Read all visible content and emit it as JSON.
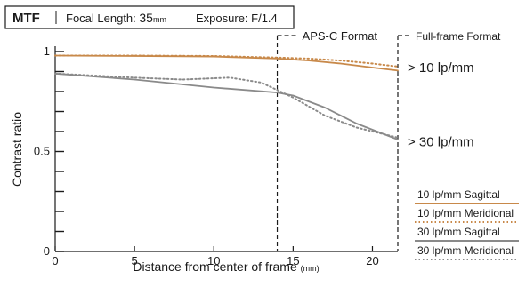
{
  "header": {
    "mtf": "MTF",
    "focal_prefix": "Focal Length: ",
    "focal_value": "35",
    "focal_unit": "mm",
    "exposure": "Exposure: F/1.4"
  },
  "chart_data": {
    "type": "line",
    "xlabel": "Distance from center of frame",
    "xlabel_unit": "(mm)",
    "ylabel": "Contrast ratio",
    "xlim": [
      0,
      21.6
    ],
    "ylim": [
      0,
      1
    ],
    "x_ticks": [
      0,
      5,
      10,
      15,
      20
    ],
    "y_tick_labels": [
      {
        "value": 0,
        "label": "0"
      },
      {
        "value": 0.5,
        "label": "0.5"
      },
      {
        "value": 1,
        "label": "1"
      }
    ],
    "y_minor_ticks": [
      0.1,
      0.2,
      0.3,
      0.4,
      0.6,
      0.7,
      0.8,
      0.9
    ],
    "regions": [
      {
        "name": "APS-C Format",
        "x_start": 14.0
      },
      {
        "name": "Full-frame Format",
        "x_start": 21.6
      }
    ],
    "group_labels": [
      {
        "text": "> 10 lp/mm",
        "y": 0.92
      },
      {
        "text": "> 30 lp/mm",
        "y": 0.55
      }
    ],
    "series": [
      {
        "name": "10 lp/mm Sagittal",
        "color": "#c8894a",
        "dash": false,
        "points": [
          [
            0,
            0.98
          ],
          [
            5,
            0.978
          ],
          [
            10,
            0.975
          ],
          [
            14,
            0.965
          ],
          [
            16,
            0.955
          ],
          [
            18,
            0.94
          ],
          [
            20,
            0.92
          ],
          [
            21.6,
            0.905
          ]
        ]
      },
      {
        "name": "10 lp/mm Meridional",
        "color": "#c8894a",
        "dash": true,
        "points": [
          [
            0,
            0.98
          ],
          [
            5,
            0.98
          ],
          [
            10,
            0.978
          ],
          [
            14,
            0.97
          ],
          [
            16,
            0.965
          ],
          [
            18,
            0.955
          ],
          [
            20,
            0.94
          ],
          [
            21.6,
            0.925
          ]
        ]
      },
      {
        "name": "30 lp/mm Sagittal",
        "color": "#8a8a8a",
        "dash": false,
        "points": [
          [
            0,
            0.89
          ],
          [
            5,
            0.86
          ],
          [
            10,
            0.82
          ],
          [
            14,
            0.795
          ],
          [
            15,
            0.78
          ],
          [
            17,
            0.72
          ],
          [
            19,
            0.64
          ],
          [
            21.6,
            0.56
          ]
        ]
      },
      {
        "name": "30 lp/mm Meridional",
        "color": "#8a8a8a",
        "dash": true,
        "points": [
          [
            0,
            0.89
          ],
          [
            5,
            0.87
          ],
          [
            8,
            0.86
          ],
          [
            11,
            0.87
          ],
          [
            13,
            0.845
          ],
          [
            15,
            0.77
          ],
          [
            17,
            0.68
          ],
          [
            19,
            0.62
          ],
          [
            21.6,
            0.57
          ]
        ]
      }
    ]
  }
}
